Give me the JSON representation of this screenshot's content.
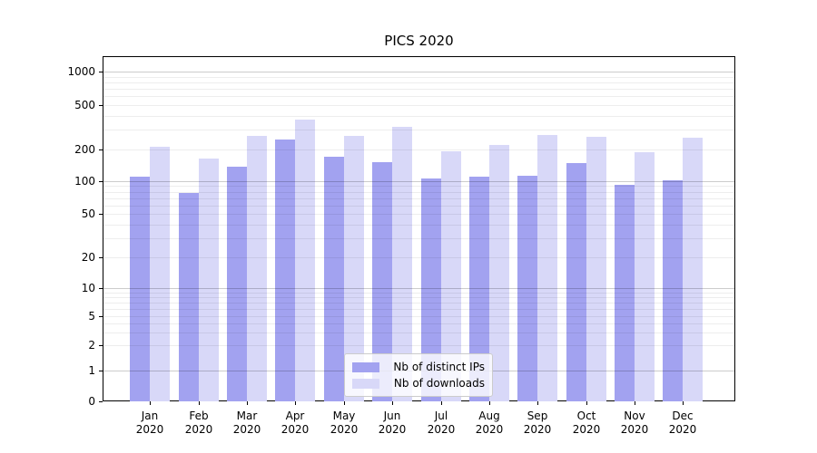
{
  "chart_data": {
    "type": "bar",
    "title": "PICS 2020",
    "categories": [
      "Jan 2020",
      "Feb 2020",
      "Mar 2020",
      "Apr 2020",
      "May 2020",
      "Jun 2020",
      "Jul 2020",
      "Aug 2020",
      "Sep 2020",
      "Oct 2020",
      "Nov 2020",
      "Dec 2020"
    ],
    "series": [
      {
        "name": "Nb of distinct IPs",
        "color": "#a2a2f0",
        "values": [
          110,
          78,
          137,
          245,
          170,
          152,
          106,
          110,
          113,
          150,
          93,
          102
        ]
      },
      {
        "name": "Nb of downloads",
        "color": "#d8d8f8",
        "values": [
          210,
          163,
          265,
          370,
          265,
          320,
          192,
          220,
          268,
          258,
          190,
          255
        ]
      }
    ],
    "yticks": [
      0,
      1,
      2,
      5,
      10,
      20,
      50,
      100,
      200,
      500,
      1000
    ],
    "ylim": [
      0,
      1400
    ],
    "yscale": "symlog",
    "xlabel": "",
    "ylabel": "",
    "grid": true,
    "legend_position": "lower center"
  },
  "colors": {
    "background": "#ffffff",
    "spine": "#000000",
    "major_grid": "#cccccc",
    "minor_grid": "#ededed",
    "legend_border": "#cccccc"
  }
}
